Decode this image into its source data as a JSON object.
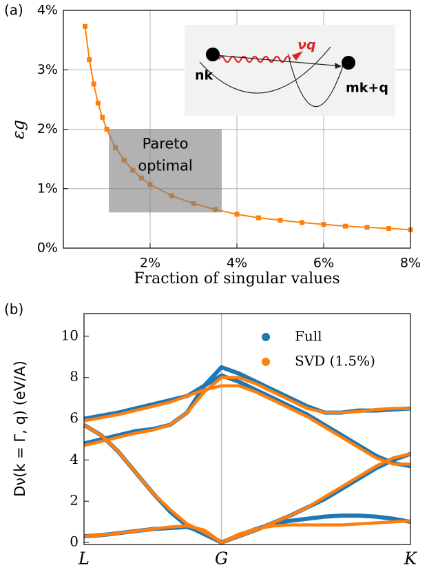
{
  "chart_data": [
    {
      "type": "line",
      "panel_label": "(a)",
      "x_label": "Fraction of singular values",
      "y_label": "εg",
      "x": [
        0.5,
        0.6,
        0.7,
        0.8,
        0.9,
        1.0,
        1.2,
        1.4,
        1.6,
        1.8,
        2.0,
        2.5,
        3.0,
        3.5,
        4.0,
        4.5,
        5.0,
        5.5,
        6.0,
        6.5,
        7.0,
        7.5,
        8.0
      ],
      "values": [
        3.73,
        3.17,
        2.76,
        2.44,
        2.2,
        2.0,
        1.69,
        1.48,
        1.31,
        1.18,
        1.07,
        0.88,
        0.75,
        0.65,
        0.57,
        0.51,
        0.47,
        0.43,
        0.4,
        0.37,
        0.35,
        0.33,
        0.31
      ],
      "color": "#ff7f0e",
      "xlim": [
        0,
        8
      ],
      "ylim": [
        0,
        4
      ],
      "xticks": [
        {
          "value": 2,
          "label": "2%"
        },
        {
          "value": 4,
          "label": "4%"
        },
        {
          "value": 6,
          "label": "6%"
        },
        {
          "value": 8,
          "label": "8%"
        }
      ],
      "yticks": [
        {
          "value": 0,
          "label": "0%"
        },
        {
          "value": 1,
          "label": "1%"
        },
        {
          "value": 2,
          "label": "2%"
        },
        {
          "value": 3,
          "label": "3%"
        },
        {
          "value": 4,
          "label": "4%"
        }
      ],
      "grid": true,
      "shaded_region": {
        "x": [
          1.05,
          3.65
        ],
        "y": [
          0.6,
          2.0
        ],
        "lines": [
          "Pareto",
          "optimal"
        ]
      },
      "inset_labels": [
        "νq",
        "nk",
        "mk+q"
      ]
    },
    {
      "type": "bands",
      "panel_label": "(b)",
      "y_label": "Dν(k = Γ, q) (eV/A)",
      "x": [
        0,
        0.125,
        0.25,
        0.375,
        0.5,
        0.625,
        0.75,
        0.875,
        1.0,
        1.125,
        1.25,
        1.375,
        1.5,
        1.625,
        1.75,
        1.875,
        2.0,
        2.125,
        2.25,
        2.375
      ],
      "xlim": [
        0,
        2.375
      ],
      "ylim": [
        -0.1,
        11.1
      ],
      "xticks": [
        {
          "value": 0,
          "label": "L"
        },
        {
          "value": 1,
          "label": "G"
        },
        {
          "value": 2.375,
          "label": "K"
        }
      ],
      "yticks": [
        0,
        2,
        4,
        6,
        8,
        10
      ],
      "legend": "upper right",
      "series": [
        {
          "name": "Full",
          "color": "#1f77b4",
          "bands": [
            [
              0.3,
              0.35,
              0.45,
              0.55,
              0.65,
              0.7,
              0.75,
              0.5,
              0.0,
              0.35,
              0.65,
              0.9,
              1.05,
              1.15,
              1.25,
              1.3,
              1.3,
              1.25,
              1.15,
              1.0
            ],
            [
              5.7,
              5.2,
              4.4,
              3.4,
              2.4,
              1.5,
              0.8,
              0.4,
              0.0,
              0.3,
              0.6,
              0.95,
              1.3,
              1.7,
              2.1,
              2.6,
              3.1,
              3.6,
              4.0,
              4.3
            ],
            [
              4.8,
              5.0,
              5.2,
              5.4,
              5.5,
              5.7,
              6.3,
              7.6,
              8.5,
              8.2,
              7.8,
              7.4,
              7.0,
              6.6,
              6.3,
              6.3,
              6.4,
              6.4,
              6.45,
              6.5
            ],
            [
              6.0,
              6.15,
              6.3,
              6.5,
              6.7,
              6.9,
              7.1,
              7.6,
              8.1,
              7.8,
              7.4,
              7.0,
              6.6,
              6.2,
              5.7,
              5.2,
              4.7,
              4.2,
              3.85,
              3.7
            ]
          ]
        },
        {
          "name": "SVD (1.5%)",
          "color": "#ff7f0e",
          "bands": [
            [
              0.3,
              0.35,
              0.45,
              0.55,
              0.65,
              0.75,
              0.8,
              0.6,
              0.0,
              0.4,
              0.65,
              0.8,
              0.85,
              0.85,
              0.85,
              0.85,
              0.9,
              0.95,
              1.0,
              1.05
            ],
            [
              5.7,
              5.2,
              4.4,
              3.4,
              2.4,
              1.6,
              0.9,
              0.5,
              0.0,
              0.3,
              0.6,
              0.95,
              1.3,
              1.7,
              2.2,
              2.7,
              3.2,
              3.7,
              4.1,
              4.3
            ],
            [
              4.7,
              4.9,
              5.1,
              5.3,
              5.45,
              5.7,
              6.3,
              7.3,
              8.0,
              8.0,
              7.7,
              7.3,
              6.9,
              6.5,
              6.3,
              6.3,
              6.35,
              6.45,
              6.5,
              6.5
            ],
            [
              5.9,
              6.05,
              6.2,
              6.4,
              6.6,
              6.8,
              7.1,
              7.4,
              7.6,
              7.6,
              7.3,
              6.9,
              6.5,
              6.1,
              5.6,
              5.1,
              4.6,
              4.1,
              3.8,
              3.8
            ]
          ]
        }
      ]
    }
  ]
}
